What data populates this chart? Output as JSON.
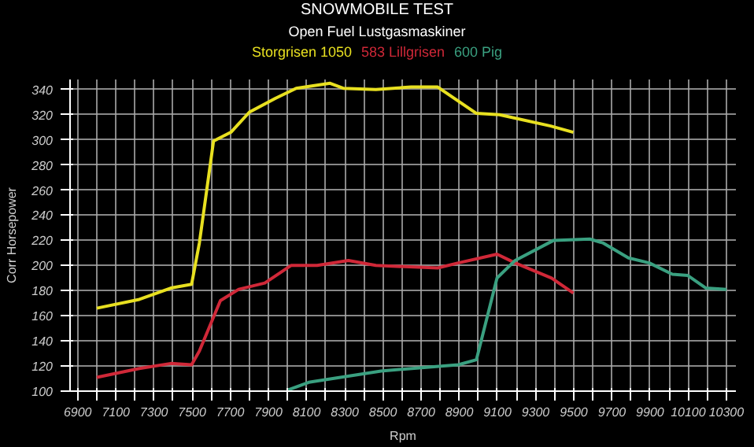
{
  "chart_data": {
    "type": "line",
    "title": "SNOWMOBILE TEST",
    "subtitle": "Open Fuel Lustgasmaskiner",
    "xlabel": "Rpm",
    "ylabel": "Corr Horsepower",
    "xlim": [
      6860,
      10350
    ],
    "ylim": [
      100,
      348
    ],
    "xticks": [
      6900,
      {
        "value": 7000,
        "label": null
      },
      7100,
      {
        "value": 7200,
        "label": null
      },
      7300,
      {
        "value": 7400,
        "label": null
      },
      7500,
      {
        "value": 7600,
        "label": null
      },
      7700,
      {
        "value": 7800,
        "label": null
      },
      7900,
      {
        "value": 8000,
        "label": null
      },
      8100,
      {
        "value": 8200,
        "label": null
      },
      8300,
      {
        "value": 8400,
        "label": null
      },
      8500,
      {
        "value": 8600,
        "label": null
      },
      8700,
      {
        "value": 8800,
        "label": null
      },
      8900,
      {
        "value": 9000,
        "label": null
      },
      9100,
      {
        "value": 9200,
        "label": null
      },
      9300,
      {
        "value": 9400,
        "label": null
      },
      9500,
      {
        "value": 9600,
        "label": null
      },
      9700,
      {
        "value": 9800,
        "label": null
      },
      9900,
      {
        "value": 10000,
        "label": null
      },
      10100,
      {
        "value": 10200,
        "label": null
      },
      10300
    ],
    "yticks": [
      100,
      120,
      140,
      160,
      180,
      200,
      220,
      240,
      260,
      280,
      300,
      320,
      340
    ],
    "grid": true,
    "marker": "none",
    "line_style": "solid",
    "series": [
      {
        "name": "Storgrisen 1050",
        "color": "#e8e020",
        "x": [
          7000,
          7223,
          7388,
          7497,
          7538,
          7612,
          7703,
          7800,
          7936,
          8045,
          8223,
          8292,
          8463,
          8648,
          8787,
          8990,
          9111,
          9379,
          9498
        ],
        "values": [
          166,
          173,
          182,
          185,
          218,
          299,
          306,
          322,
          333,
          341,
          345,
          341,
          340,
          342,
          342,
          321,
          320,
          311,
          306
        ]
      },
      {
        "name": "583 Lillgrisen",
        "color": "#d02838",
        "x": [
          7000,
          7223,
          7388,
          7497,
          7538,
          7648,
          7744,
          7881,
          8018,
          8155,
          8319,
          8463,
          8787,
          8895,
          9098,
          9193,
          9384,
          9498
        ],
        "values": [
          111,
          118,
          122,
          121,
          132,
          172,
          181,
          186,
          200,
          200,
          204,
          200,
          198,
          202,
          209,
          202,
          190,
          178
        ]
      },
      {
        "name": "600 Pig",
        "color": "#3aa080",
        "x": [
          8004,
          8111,
          8490,
          8895,
          8990,
          9098,
          9193,
          9395,
          9584,
          9652,
          9787,
          9896,
          10017,
          10098,
          10193,
          10301
        ],
        "values": [
          101,
          107,
          116,
          121,
          125,
          190,
          204,
          220,
          221,
          218,
          206,
          202,
          193,
          192,
          182,
          181
        ]
      }
    ]
  }
}
